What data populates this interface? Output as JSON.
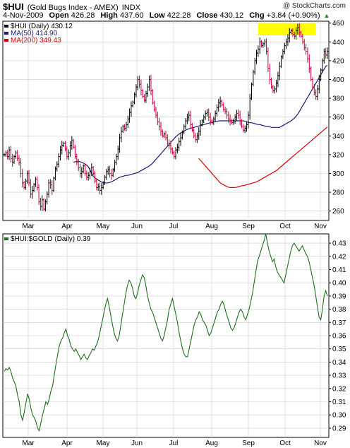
{
  "header": {
    "symbol": "$HUI",
    "description": "(Gold Bugs Index - AMEX)",
    "exchange": "INDX",
    "watermark": "@ StockCharts.com",
    "date": "4-Nov-2009",
    "open_label": "Open",
    "open": "426.28",
    "high_label": "High",
    "high": "437.60",
    "low_label": "Low",
    "low": "422.28",
    "close_label": "Close",
    "close": "430.12",
    "chg_label": "Chg",
    "chg": "+3.84 (+0.90%)",
    "chg_arrow": "▲"
  },
  "colors": {
    "up_bar": "#000000",
    "down_bar": "#cc0033",
    "ma50": "#1a1a80",
    "ma200": "#dd0000",
    "ratio": "#1f6f1f",
    "highlight": "#ffff00",
    "grid": "#cccccc"
  },
  "chart_data": [
    {
      "type": "ohlc",
      "legend": [
        {
          "label": "$HUI (Daily) 430.12",
          "color": "#000000"
        },
        {
          "label": "MA(50) 414.90",
          "color": "#1a1a80"
        },
        {
          "label": "MA(200) 349.43",
          "color": "#dd0000"
        }
      ],
      "legend_placement": "top-left",
      "x_tick_labels": [
        "Mar",
        "Apr",
        "May",
        "Jun",
        "Jul",
        "Aug",
        "Sep",
        "Oct",
        "Nov"
      ],
      "y_tick_labels": [
        260,
        280,
        300,
        320,
        340,
        360,
        380,
        400,
        420,
        440,
        460
      ],
      "ylim": [
        250,
        462
      ],
      "grid": true,
      "highlight_band": {
        "from": 447,
        "to": 460,
        "start_index": 154,
        "end_index": 189
      },
      "close": [
        320,
        322,
        318,
        325,
        316,
        312,
        318,
        322,
        316,
        312,
        300,
        290,
        285,
        292,
        300,
        290,
        278,
        282,
        288,
        294,
        285,
        270,
        265,
        272,
        262,
        270,
        278,
        290,
        288,
        282,
        295,
        305,
        310,
        318,
        325,
        330,
        332,
        326,
        318,
        322,
        330,
        335,
        328,
        318,
        312,
        306,
        300,
        302,
        308,
        300,
        296,
        298,
        302,
        306,
        300,
        292,
        285,
        286,
        282,
        285,
        290,
        296,
        302,
        304,
        300,
        298,
        304,
        312,
        318,
        326,
        338,
        345,
        350,
        348,
        352,
        358,
        365,
        372,
        376,
        384,
        392,
        400,
        395,
        388,
        382,
        378,
        385,
        392,
        400,
        388,
        375,
        368,
        362,
        355,
        350,
        345,
        340,
        342,
        338,
        332,
        330,
        326,
        322,
        318,
        325,
        328,
        334,
        338,
        344,
        350,
        356,
        360,
        362,
        352,
        346,
        340,
        336,
        340,
        345,
        352,
        356,
        360,
        364,
        365,
        360,
        356,
        354,
        358,
        364,
        370,
        375,
        377,
        373,
        368,
        366,
        362,
        358,
        356,
        354,
        356,
        360,
        364,
        362,
        356,
        350,
        346,
        348,
        352,
        362,
        380,
        395,
        408,
        420,
        428,
        432,
        440,
        436,
        438,
        440,
        430,
        412,
        400,
        392,
        388,
        390,
        396,
        404,
        414,
        424,
        430,
        436,
        440,
        444,
        450,
        452,
        448,
        446,
        452,
        455,
        450,
        446,
        440,
        434,
        430,
        422,
        412,
        400,
        392,
        386,
        382,
        390,
        400,
        410,
        420,
        430,
        426,
        430
      ],
      "ma50": [
        312,
        312.5,
        313,
        313,
        312.5,
        312,
        311,
        310,
        309,
        307,
        304,
        300,
        297,
        295,
        294,
        293,
        292,
        291,
        290,
        290,
        290,
        290,
        290.5,
        291,
        292,
        293,
        294,
        295,
        296,
        296.5,
        297,
        297.5,
        298,
        298,
        298.5,
        299,
        299.5,
        300,
        300.5,
        301,
        302,
        303,
        304,
        305,
        306,
        307,
        308,
        309.5,
        311,
        313,
        315,
        317,
        319,
        321,
        323,
        325,
        327,
        329,
        331,
        333,
        335,
        337,
        339,
        340.5,
        342,
        343,
        344,
        345,
        346,
        347,
        347.5,
        348,
        348.5,
        349,
        349.5,
        350,
        350.5,
        351,
        351.5,
        352,
        352.5,
        353,
        353.5,
        354,
        354.5,
        355,
        355,
        355.5,
        356,
        356,
        356,
        356,
        356,
        356,
        356,
        356,
        356,
        356,
        356,
        356,
        356,
        356,
        356,
        356,
        355.5,
        355,
        354.5,
        354,
        354,
        353.5,
        353,
        352.5,
        352,
        352,
        351.5,
        351,
        350.5,
        350,
        350,
        349.5,
        349,
        349,
        349,
        349,
        349,
        349,
        350,
        351,
        352,
        353,
        354,
        355,
        356,
        357.5,
        359,
        361,
        363,
        366,
        369,
        372,
        375,
        378,
        381,
        384,
        387,
        390,
        393,
        396,
        399,
        402,
        405,
        408,
        411,
        414,
        415
      ],
      "ma200": [
        316,
        314,
        312,
        310,
        308,
        306,
        304,
        302,
        300,
        298,
        296,
        294,
        292,
        290,
        289,
        288,
        287,
        286,
        285.5,
        285,
        285,
        285,
        285,
        285.5,
        286,
        286.5,
        287,
        287,
        287.5,
        288,
        288.5,
        289,
        289.5,
        290,
        290.5,
        291,
        292,
        293,
        294,
        295,
        296,
        297,
        298,
        299,
        300,
        301,
        302,
        303,
        304.5,
        306,
        307.5,
        309,
        310.5,
        312,
        313.5,
        315,
        316.5,
        318,
        319.5,
        321,
        322.5,
        324,
        325.5,
        327,
        328.5,
        330,
        331.5,
        333,
        334.5,
        336,
        337.5,
        339,
        340.5,
        342,
        343.5,
        345,
        346.5,
        348,
        349.5
      ],
      "series": [
        {
          "name": "$HUI (Daily)"
        },
        {
          "name": "MA(50)"
        },
        {
          "name": "MA(200)"
        }
      ]
    },
    {
      "type": "line",
      "legend": [
        {
          "label": "$HUI:$GOLD (Daily) 0.39",
          "color": "#1f6f1f"
        }
      ],
      "legend_placement": "top-left",
      "x_tick_labels": [
        "Mar",
        "Apr",
        "May",
        "Jun",
        "Jul",
        "Aug",
        "Sep",
        "Oct",
        "Nov"
      ],
      "y_tick_labels": [
        "0.29",
        "0.30",
        "0.31",
        "0.32",
        "0.33",
        "0.34",
        "0.35",
        "0.36",
        "0.37",
        "0.38",
        "0.39",
        "0.40",
        "0.41",
        "0.42",
        "0.43"
      ],
      "ylim": [
        0.283,
        0.437
      ],
      "grid": true,
      "series": [
        {
          "name": "$HUI:$GOLD (Daily)",
          "values": [
            0.333,
            0.335,
            0.334,
            0.336,
            0.333,
            0.328,
            0.325,
            0.322,
            0.315,
            0.31,
            0.3,
            0.296,
            0.302,
            0.309,
            0.316,
            0.312,
            0.305,
            0.3,
            0.298,
            0.295,
            0.29,
            0.288,
            0.294,
            0.3,
            0.305,
            0.31,
            0.308,
            0.312,
            0.318,
            0.322,
            0.33,
            0.338,
            0.345,
            0.352,
            0.356,
            0.358,
            0.362,
            0.365,
            0.36,
            0.357,
            0.352,
            0.35,
            0.348,
            0.35,
            0.347,
            0.345,
            0.342,
            0.344,
            0.346,
            0.343,
            0.342,
            0.345,
            0.347,
            0.35,
            0.349,
            0.352,
            0.355,
            0.36,
            0.366,
            0.372,
            0.378,
            0.384,
            0.388,
            0.382,
            0.375,
            0.368,
            0.362,
            0.358,
            0.356,
            0.36,
            0.368,
            0.376,
            0.384,
            0.392,
            0.398,
            0.402,
            0.4,
            0.396,
            0.39,
            0.388,
            0.392,
            0.398,
            0.402,
            0.406,
            0.404,
            0.398,
            0.39,
            0.385,
            0.38,
            0.378,
            0.374,
            0.37,
            0.366,
            0.362,
            0.358,
            0.356,
            0.36,
            0.366,
            0.372,
            0.38,
            0.384,
            0.388,
            0.382,
            0.376,
            0.37,
            0.362,
            0.356,
            0.35,
            0.346,
            0.344,
            0.344,
            0.35,
            0.356,
            0.362,
            0.368,
            0.372,
            0.374,
            0.378,
            0.376,
            0.372,
            0.37,
            0.368,
            0.364,
            0.36,
            0.362,
            0.366,
            0.37,
            0.374,
            0.378,
            0.38,
            0.384,
            0.386,
            0.383,
            0.378,
            0.374,
            0.37,
            0.366,
            0.364,
            0.366,
            0.37,
            0.374,
            0.378,
            0.38,
            0.378,
            0.374,
            0.372,
            0.376,
            0.38,
            0.386,
            0.392,
            0.4,
            0.408,
            0.416,
            0.42,
            0.424,
            0.428,
            0.432,
            0.437,
            0.43,
            0.424,
            0.42,
            0.416,
            0.418,
            0.412,
            0.408,
            0.406,
            0.404,
            0.402,
            0.4,
            0.406,
            0.412,
            0.418,
            0.424,
            0.428,
            0.43,
            0.428,
            0.426,
            0.424,
            0.426,
            0.428,
            0.425,
            0.422,
            0.42,
            0.416,
            0.41,
            0.404,
            0.398,
            0.39,
            0.382,
            0.374,
            0.372,
            0.38,
            0.39,
            0.394,
            0.39
          ]
        }
      ]
    }
  ]
}
